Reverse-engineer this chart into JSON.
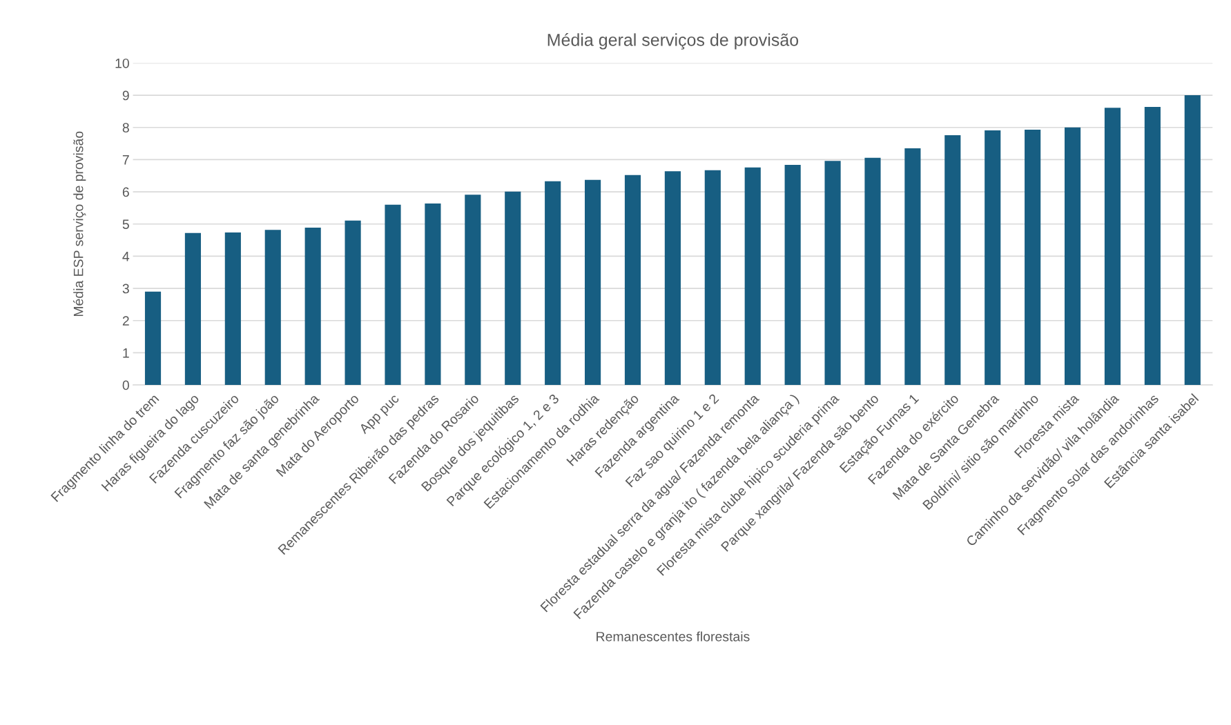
{
  "chart_data": {
    "type": "bar",
    "title": "Média geral serviços de provisão",
    "xlabel": "Remanescentes florestais",
    "ylabel": "Média ESP serviço de provisão",
    "categories": [
      "Fragmento linha do trem",
      "Haras figueira do lago",
      "Fazenda cuscuzeiro",
      "Fragmento faz são joão",
      "Mata de santa genebrinha",
      "Mata do Aeroporto",
      "App puc",
      "Remanescentes Ribeirão das pedras",
      "Fazenda do Rosario",
      "Bosque dos jequitibas",
      "Parque ecológico 1, 2 e 3",
      "Estacionamento da rodhia",
      "Haras redenção",
      "Fazenda argentina",
      "Faz sao quirino 1 e 2",
      "Floresta estadual serra da agua/ Fazenda remonta",
      "Fazenda castelo e granja ito ( fazenda bela aliança )",
      "Floresta mista clube hipico scuderia prima",
      "Parque xangrila/ Fazenda são bento",
      "Estação Furnas 1",
      "Fazenda do exército",
      "Mata de Santa Genebra",
      "Boldrini/ sitio são martinho",
      "Floresta mista",
      "Caminho da servidão/ vila holândia",
      "Fragmento solar das andorinhas",
      "Estância santa isabel"
    ],
    "values": [
      2.9,
      4.72,
      4.74,
      4.82,
      4.89,
      5.11,
      5.6,
      5.64,
      5.91,
      6.01,
      6.33,
      6.37,
      6.52,
      6.64,
      6.67,
      6.76,
      6.84,
      6.96,
      7.06,
      7.35,
      7.76,
      7.91,
      7.93,
      8.0,
      8.61,
      8.64,
      9.0
    ],
    "color": "#175e82",
    "ylim": [
      0,
      10
    ],
    "yticks": [
      0,
      1,
      2,
      3,
      4,
      5,
      6,
      7,
      8,
      9,
      10
    ],
    "grid": "y",
    "legend": false
  }
}
